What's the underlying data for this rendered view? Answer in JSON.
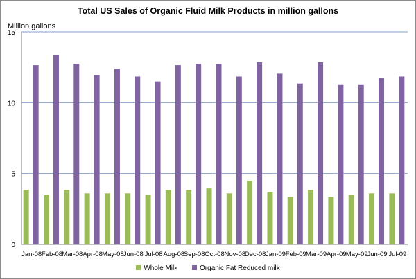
{
  "colors": {
    "whole_milk": "#9bbb59",
    "fat_reduced": "#8064a2",
    "gridline": "#86a0c8",
    "axis": "#7f7f7f"
  },
  "chart_data": {
    "type": "bar",
    "title": "Total US Sales of Organic Fluid Milk Products in million gallons",
    "ylabel": "Million gallons",
    "xlabel": "",
    "ylim": [
      0,
      15
    ],
    "yticks": [
      0,
      5,
      10,
      15
    ],
    "grid": true,
    "legend_position": "bottom",
    "categories": [
      "Jan-08",
      "Feb-08",
      "Mar-08",
      "Apr-08",
      "May-08",
      "Jun-08",
      "Jul-08",
      "Aug-08",
      "Sep-08",
      "Oct-08",
      "Nov-08",
      "Dec-08",
      "Jan-09",
      "Feb-09",
      "Mar-09",
      "Apr-09",
      "May-09",
      "Jun-09",
      "Jul-09"
    ],
    "series": [
      {
        "name": "Whole Milk",
        "color": "#9bbb59",
        "values": [
          3.85,
          3.5,
          3.85,
          3.6,
          3.6,
          3.6,
          3.5,
          3.85,
          3.85,
          3.95,
          3.6,
          4.5,
          3.7,
          3.35,
          3.85,
          3.35,
          3.5,
          3.6,
          3.6
        ]
      },
      {
        "name": "Organic Fat Reduced milk",
        "color": "#8064a2",
        "values": [
          12.65,
          13.35,
          12.75,
          11.95,
          12.4,
          11.85,
          11.5,
          12.65,
          12.75,
          12.75,
          11.85,
          12.85,
          12.05,
          11.35,
          12.85,
          11.25,
          11.25,
          11.75,
          11.85
        ]
      }
    ]
  }
}
